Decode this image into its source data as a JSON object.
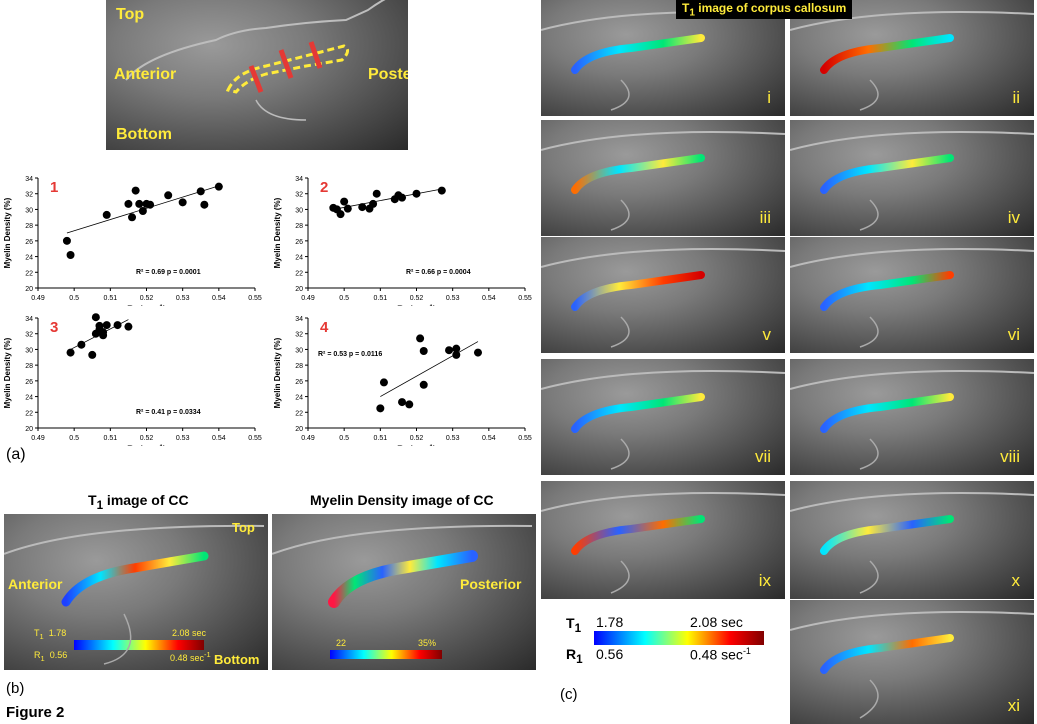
{
  "top_image": {
    "top": "Top",
    "anterior": "Anterior",
    "posterior": "Posterior",
    "bottom": "Bottom"
  },
  "charts_panel_label": "(a)",
  "chart_data": [
    {
      "type": "scatter",
      "panel_number": "1",
      "ylabel": "Myelin Density (%)",
      "xlabel_main": "R",
      "xlabel_sub": "1",
      "xlabel_tail": " (sec",
      "xlabel_sup": "-1",
      "xlabel_close": ")",
      "xlim": [
        0.49,
        0.55
      ],
      "ylim": [
        20,
        34
      ],
      "xticks": [
        "0.49",
        "0.5",
        "0.51",
        "0.52",
        "0.53",
        "0.54",
        "0.55"
      ],
      "yticks": [
        "20",
        "22",
        "24",
        "26",
        "28",
        "30",
        "32",
        "34"
      ],
      "x": [
        0.498,
        0.499,
        0.509,
        0.515,
        0.516,
        0.517,
        0.518,
        0.519,
        0.52,
        0.521,
        0.526,
        0.53,
        0.535,
        0.536,
        0.54
      ],
      "y": [
        26.0,
        24.2,
        29.3,
        30.7,
        29.0,
        32.4,
        30.7,
        29.8,
        30.7,
        30.6,
        31.8,
        30.9,
        32.3,
        30.6,
        32.9
      ],
      "fit": [
        [
          0.498,
          27.0
        ],
        [
          0.54,
          33.0
        ]
      ],
      "stat": "R² = 0.69  p = 0.0001"
    },
    {
      "type": "scatter",
      "panel_number": "2",
      "ylabel": "Myelin Density (%)",
      "xlabel_main": "R",
      "xlabel_sub": "1",
      "xlabel_tail": " (sec",
      "xlabel_sup": "-1",
      "xlabel_close": ")",
      "xlim": [
        0.49,
        0.55
      ],
      "ylim": [
        20,
        34
      ],
      "xticks": [
        "0.49",
        "0.5",
        "0.51",
        "0.52",
        "0.53",
        "0.54",
        "0.55"
      ],
      "yticks": [
        "20",
        "22",
        "24",
        "26",
        "28",
        "30",
        "32",
        "34"
      ],
      "x": [
        0.497,
        0.498,
        0.499,
        0.5,
        0.501,
        0.505,
        0.507,
        0.508,
        0.509,
        0.514,
        0.515,
        0.516,
        0.52,
        0.527
      ],
      "y": [
        30.2,
        30.0,
        29.4,
        31.0,
        30.1,
        30.3,
        30.1,
        30.7,
        32.0,
        31.3,
        31.8,
        31.5,
        32.0,
        32.4
      ],
      "fit": [
        [
          0.497,
          30.0
        ],
        [
          0.527,
          32.6
        ]
      ],
      "stat": "R² = 0.66  p = 0.0004"
    },
    {
      "type": "scatter",
      "panel_number": "3",
      "ylabel": "Myelin Density (%)",
      "xlabel_main": "R",
      "xlabel_sub": "1",
      "xlabel_tail": " (sec",
      "xlabel_sup": "-1",
      "xlabel_close": ")",
      "xlim": [
        0.49,
        0.55
      ],
      "ylim": [
        20,
        34
      ],
      "xticks": [
        "0.49",
        "0.5",
        "0.51",
        "0.52",
        "0.53",
        "0.54",
        "0.55"
      ],
      "yticks": [
        "20",
        "22",
        "24",
        "26",
        "28",
        "30",
        "32",
        "34"
      ],
      "x": [
        0.499,
        0.502,
        0.505,
        0.506,
        0.506,
        0.507,
        0.507,
        0.508,
        0.508,
        0.509,
        0.512,
        0.515
      ],
      "y": [
        29.6,
        30.6,
        29.3,
        32.0,
        34.1,
        33.0,
        32.5,
        32.2,
        31.8,
        33.1,
        33.1,
        32.9
      ],
      "fit": [
        [
          0.499,
          30.0
        ],
        [
          0.515,
          33.8
        ]
      ],
      "stat": "R² = 0.41  p = 0.0334"
    },
    {
      "type": "scatter",
      "panel_number": "4",
      "ylabel": "Myelin Density (%)",
      "xlabel_main": "R",
      "xlabel_sub": "1",
      "xlabel_tail": " (sec",
      "xlabel_sup": "-1",
      "xlabel_close": ")",
      "xlim": [
        0.49,
        0.55
      ],
      "ylim": [
        20,
        34
      ],
      "xticks": [
        "0.49",
        "0.5",
        "0.51",
        "0.52",
        "0.53",
        "0.54",
        "0.55"
      ],
      "yticks": [
        "20",
        "22",
        "24",
        "26",
        "28",
        "30",
        "32",
        "34"
      ],
      "x": [
        0.51,
        0.511,
        0.516,
        0.518,
        0.521,
        0.522,
        0.522,
        0.529,
        0.531,
        0.531,
        0.537
      ],
      "y": [
        22.5,
        25.8,
        23.3,
        23.0,
        31.4,
        29.8,
        25.5,
        29.9,
        29.3,
        30.1,
        29.6
      ],
      "fit": [
        [
          0.51,
          24.0
        ],
        [
          0.537,
          31.0
        ]
      ],
      "stat": "R² = 0.53  p = 0.0116"
    }
  ],
  "panel_b": {
    "t1_title": "T",
    "t1_title_sub": "1",
    "t1_title_rest": " image of CC",
    "myelin_title": "Myelin Density image of CC",
    "anterior": "Anterior",
    "top": "Top",
    "bottom": "Bottom",
    "posterior": "Posterior",
    "t1": "T",
    "t1_sub": "1",
    "t1_lo": "1.78",
    "t1_hi": "2.08 sec",
    "r1": "R",
    "r1_sub": "1",
    "r1_lo": "0.56",
    "r1_hi": "0.48 sec",
    "r1_hi_sup": "-1",
    "md_lo": "22",
    "md_hi": "35%",
    "label": "(b)",
    "figure": "Figure 2"
  },
  "panel_c": {
    "title": "T",
    "title_sub": "1",
    "title_rest": " image of corpus callosum",
    "romans": [
      "i",
      "ii",
      "iii",
      "iv",
      "v",
      "vi",
      "vii",
      "viii",
      "ix",
      "x",
      "xi"
    ],
    "t1": "T",
    "t1_sub": "1",
    "t1_lo": "1.78",
    "t1_hi": "2.08 sec",
    "r1": "R",
    "r1_sub": "1",
    "r1_lo": "0.56",
    "r1_hi": "0.48 sec",
    "r1_hi_sup": "-1",
    "label": "(c)"
  }
}
